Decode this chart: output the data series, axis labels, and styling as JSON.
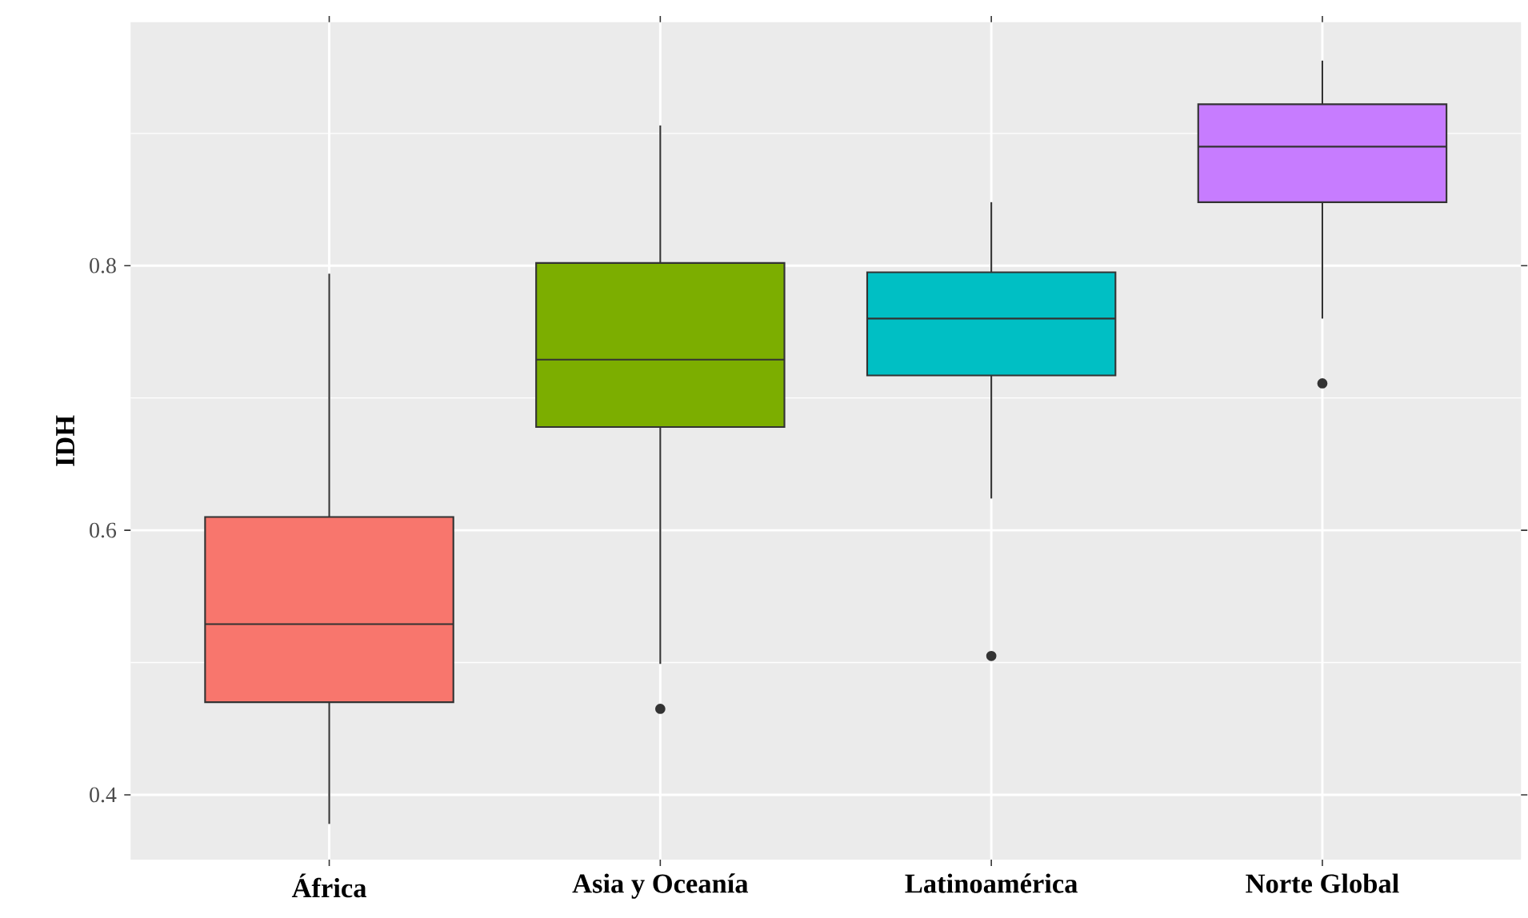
{
  "chart_data": {
    "type": "box",
    "ylabel": "IDH",
    "categories": [
      "África",
      "Asia y Oceanía",
      "Latinoamérica",
      "Norte Global"
    ],
    "colors": [
      "#f8766d",
      "#7cae00",
      "#00bfc4",
      "#c77cff"
    ],
    "boxes": [
      {
        "low": 0.378,
        "q1": 0.47,
        "median": 0.529,
        "q3": 0.61,
        "high": 0.794
      },
      {
        "low": 0.499,
        "q1": 0.678,
        "median": 0.729,
        "q3": 0.802,
        "high": 0.906,
        "outliers": [
          0.465
        ]
      },
      {
        "low": 0.624,
        "q1": 0.717,
        "median": 0.76,
        "q3": 0.795,
        "high": 0.848,
        "outliers": [
          0.505
        ]
      },
      {
        "low": 0.76,
        "q1": 0.848,
        "median": 0.89,
        "q3": 0.922,
        "high": 0.955,
        "outliers": [
          0.711
        ]
      }
    ],
    "ylim": [
      0.351,
      0.984
    ],
    "yticks": [
      0.4,
      {
        "value": 0.5,
        "label": null
      },
      0.6,
      {
        "value": 0.7,
        "label": null
      },
      0.8,
      {
        "value": 0.9,
        "label": null
      }
    ],
    "grid": true
  }
}
